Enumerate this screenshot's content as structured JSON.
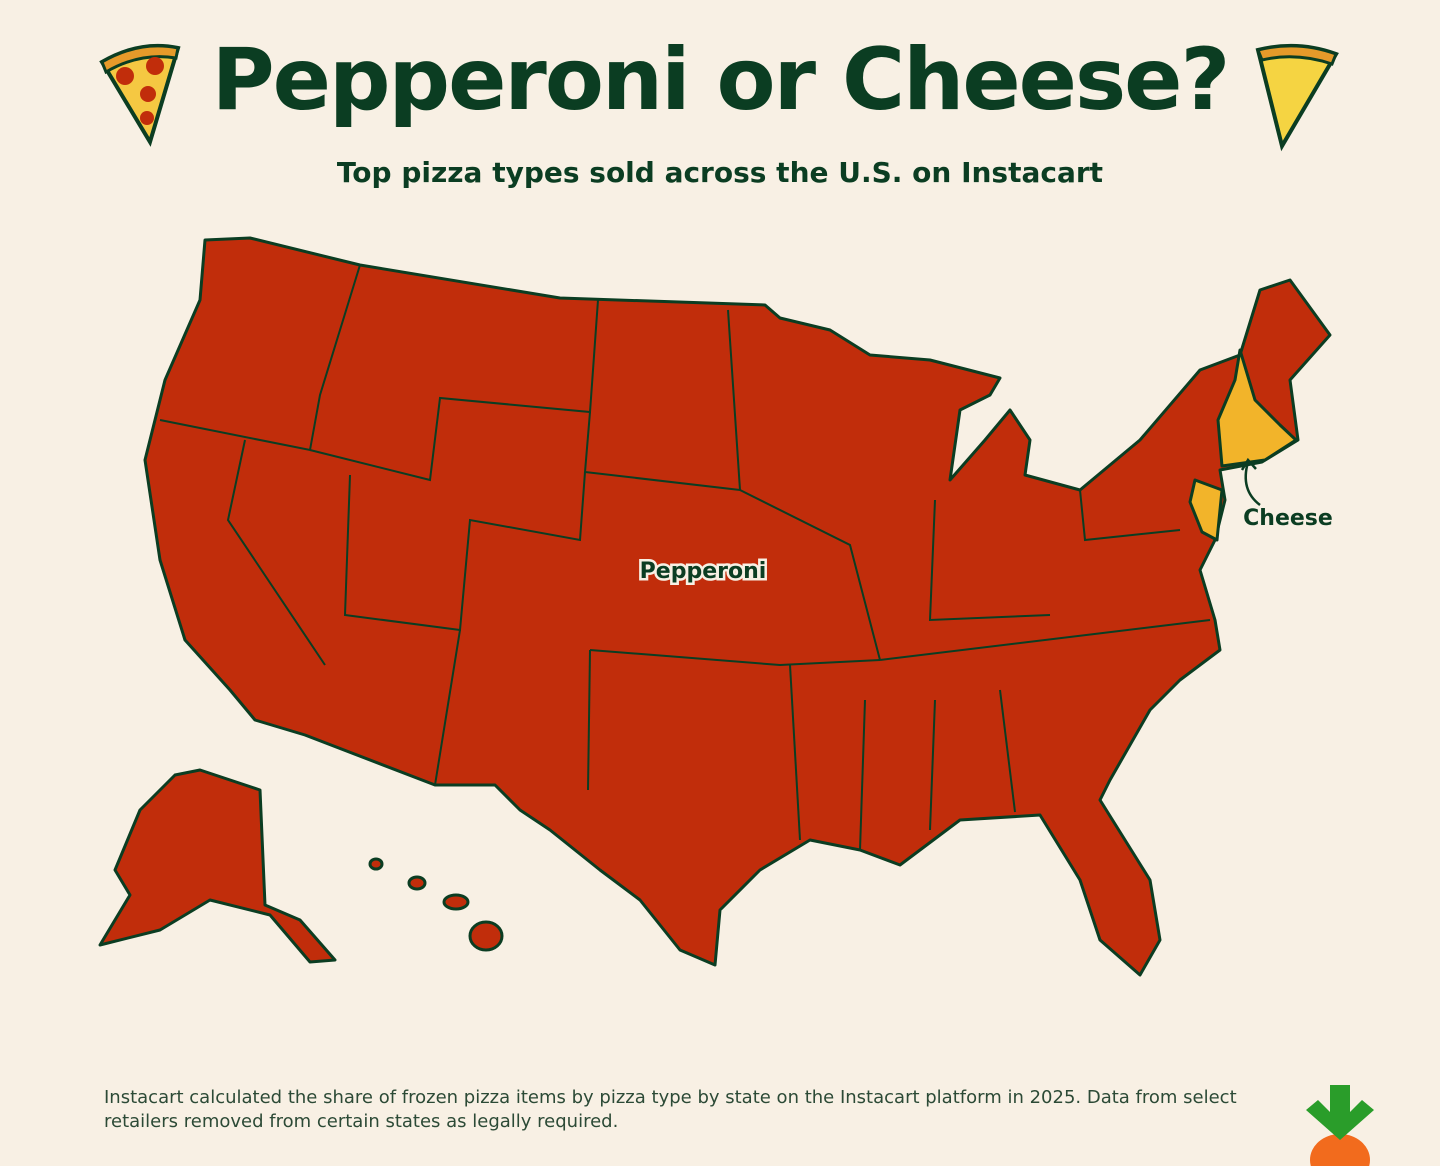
{
  "header": {
    "title": "Pepperoni or Cheese?",
    "subtitle": "Top pizza types sold across the U.S. on Instacart"
  },
  "map": {
    "regions": [
      {
        "label": "Pepperoni",
        "color": "#c12d0b"
      },
      {
        "label": "Cheese",
        "color": "#f2b42a"
      }
    ]
  },
  "footnote": "Instacart calculated the share of frozen pizza items by pizza type by state on the Instacart platform in 2025. Data from select retailers removed from certain states as legally required."
}
